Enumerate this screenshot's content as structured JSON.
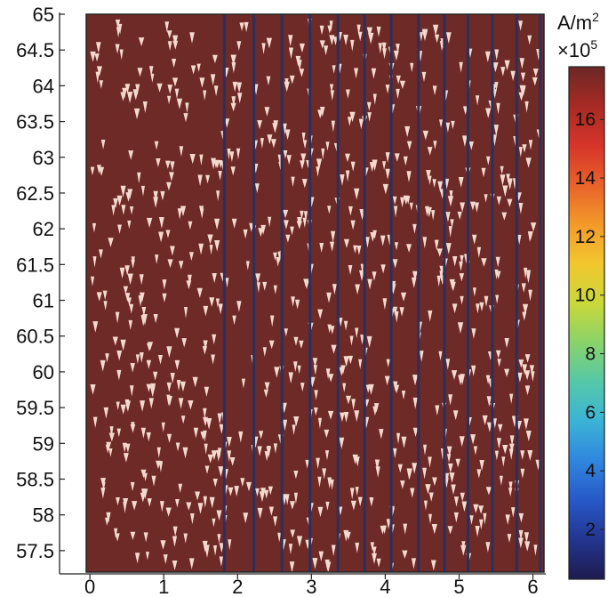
{
  "chart_data": {
    "type": "heatmap",
    "title": "",
    "xlabel": "",
    "ylabel": "",
    "xlim": [
      -0.05,
      6.15
    ],
    "ylim": [
      57.2,
      65.0
    ],
    "x_ticks": [
      "0",
      "1",
      "2",
      "3",
      "4",
      "5",
      "6"
    ],
    "y_ticks": [
      "57.5",
      "58",
      "58.5",
      "59",
      "59.5",
      "60",
      "60.5",
      "61",
      "61.5",
      "62",
      "62.5",
      "63",
      "63.5",
      "64",
      "64.5",
      "65"
    ],
    "stripe_boundaries_x": [
      1.82,
      2.22,
      2.6,
      2.98,
      3.36,
      3.72,
      4.08,
      4.45,
      4.8,
      5.12,
      5.45,
      5.78,
      6.1
    ],
    "field_value": 17.5,
    "colorbar": {
      "unit": "A/m",
      "unit_exponent": "2",
      "multiplier": "×10",
      "multiplier_exponent": "5",
      "ticks": [
        "2",
        "4",
        "6",
        "8",
        "10",
        "12",
        "14",
        "16"
      ],
      "range": [
        0.3,
        17.8
      ],
      "colormap": [
        "#1e1b4e",
        "#23358f",
        "#2758c8",
        "#2f86de",
        "#3bb3d6",
        "#55c8a8",
        "#8ad26a",
        "#c9d83a",
        "#f2c72e",
        "#f39a2a",
        "#e9622a",
        "#d6352a",
        "#a82a24",
        "#6b2826"
      ]
    },
    "colors": {
      "field": "#6e2a26",
      "stripe_line": "#2a2f5e",
      "arrow": "#f4d9cf"
    }
  }
}
